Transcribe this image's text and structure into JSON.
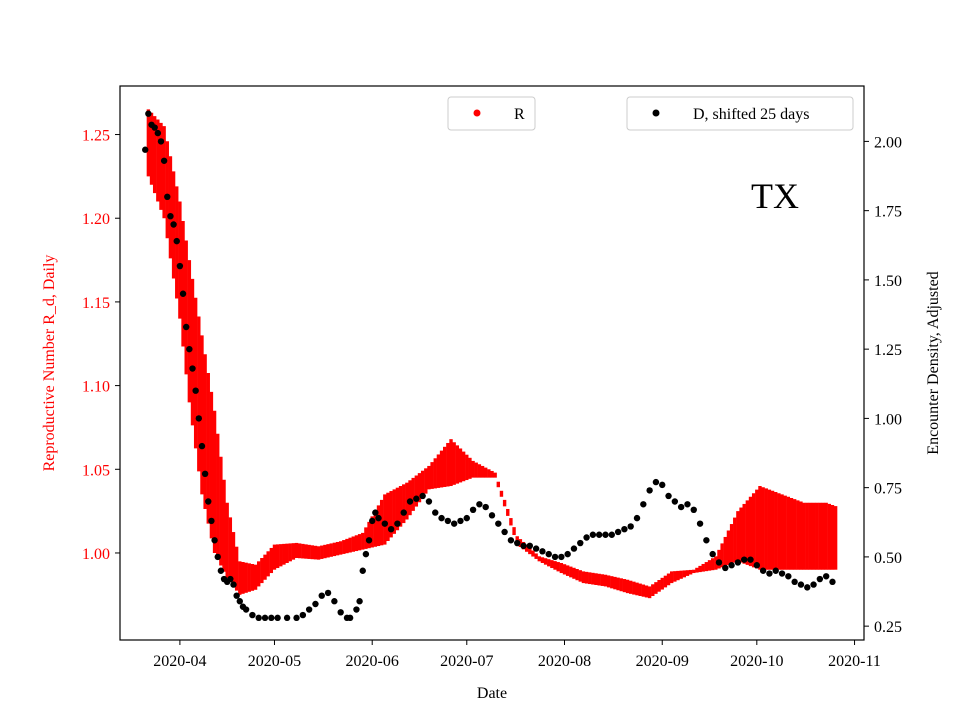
{
  "chart_data": {
    "type": "scatter",
    "title": "",
    "annotation": "TX",
    "xlabel": "Date",
    "ylabel_left": "Reproductive Number R_d, Daily",
    "ylabel_right": "Encounter Density, Adjusted",
    "left_axis_color": "#ff0000",
    "right_axis_color": "#000000",
    "xlim": [
      "2020-03-13",
      "2020-11-04"
    ],
    "ylim_left": [
      0.948,
      1.279
    ],
    "ylim_right": [
      0.2,
      2.2
    ],
    "x_ticks": [
      "2020-04-01",
      "2020-05-01",
      "2020-06-01",
      "2020-07-01",
      "2020-08-01",
      "2020-09-01",
      "2020-10-01",
      "2020-11-01"
    ],
    "x_tick_labels": [
      "2020-04",
      "2020-05",
      "2020-06",
      "2020-07",
      "2020-08",
      "2020-09",
      "2020-10",
      "2020-11"
    ],
    "y_left_ticks": [
      1.0,
      1.05,
      1.1,
      1.15,
      1.2,
      1.25
    ],
    "y_left_tick_labels": [
      "1.00",
      "1.05",
      "1.10",
      "1.15",
      "1.20",
      "1.25"
    ],
    "y_right_ticks": [
      0.25,
      0.5,
      0.75,
      1.0,
      1.25,
      1.5,
      1.75,
      2.0
    ],
    "y_right_tick_labels": [
      "0.25",
      "0.50",
      "0.75",
      "1.00",
      "1.25",
      "1.50",
      "1.75",
      "2.00"
    ],
    "legend_left": {
      "placement": "upper-center",
      "label": "R",
      "color": "#ff0000"
    },
    "legend_right": {
      "placement": "upper-right",
      "label": "D, shifted 25 days",
      "color": "#000000"
    },
    "series": [
      {
        "name": "R",
        "axis": "left",
        "color": "#ff0000",
        "mark": "vertical range",
        "x": [
          "2020-03-22",
          "2020-03-27",
          "2020-04-01",
          "2020-04-04",
          "2020-04-08",
          "2020-04-12",
          "2020-04-16",
          "2020-04-20",
          "2020-04-25",
          "2020-05-01",
          "2020-05-08",
          "2020-05-15",
          "2020-05-22",
          "2020-05-29",
          "2020-06-05",
          "2020-06-12",
          "2020-06-19",
          "2020-06-26",
          "2020-07-03",
          "2020-07-10",
          "2020-07-17",
          "2020-07-24",
          "2020-07-31",
          "2020-08-07",
          "2020-08-14",
          "2020-08-21",
          "2020-08-28",
          "2020-09-04",
          "2020-09-11",
          "2020-09-18",
          "2020-09-25",
          "2020-10-02",
          "2020-10-09",
          "2020-10-16",
          "2020-10-23",
          "2020-10-26"
        ],
        "low": [
          1.225,
          1.2,
          1.14,
          1.09,
          1.035,
          1.0,
          0.985,
          0.975,
          0.978,
          0.99,
          0.997,
          0.996,
          0.999,
          1.002,
          1.005,
          1.02,
          1.038,
          1.04,
          1.045,
          1.045,
          1.005,
          0.995,
          0.988,
          0.982,
          0.98,
          0.976,
          0.973,
          0.982,
          0.988,
          0.99,
          0.995,
          0.99,
          0.99,
          0.99,
          0.99,
          0.99
        ],
        "high": [
          1.265,
          1.255,
          1.21,
          1.175,
          1.13,
          1.085,
          1.03,
          0.995,
          0.993,
          1.005,
          1.006,
          1.004,
          1.007,
          1.012,
          1.035,
          1.042,
          1.052,
          1.068,
          1.055,
          1.048,
          1.01,
          0.998,
          0.994,
          0.989,
          0.987,
          0.984,
          0.98,
          0.989,
          0.99,
          0.998,
          1.025,
          1.04,
          1.035,
          1.03,
          1.03,
          1.028
        ]
      },
      {
        "name": "D, shifted 25 days",
        "axis": "right",
        "color": "#000000",
        "mark": "dot",
        "x": [
          "2020-03-21",
          "2020-03-22",
          "2020-03-23",
          "2020-03-24",
          "2020-03-25",
          "2020-03-26",
          "2020-03-27",
          "2020-03-28",
          "2020-03-29",
          "2020-03-30",
          "2020-03-31",
          "2020-04-01",
          "2020-04-02",
          "2020-04-03",
          "2020-04-04",
          "2020-04-05",
          "2020-04-06",
          "2020-04-07",
          "2020-04-08",
          "2020-04-09",
          "2020-04-10",
          "2020-04-11",
          "2020-04-12",
          "2020-04-13",
          "2020-04-14",
          "2020-04-15",
          "2020-04-16",
          "2020-04-17",
          "2020-04-18",
          "2020-04-19",
          "2020-04-20",
          "2020-04-21",
          "2020-04-22",
          "2020-04-24",
          "2020-04-26",
          "2020-04-28",
          "2020-04-30",
          "2020-05-02",
          "2020-05-05",
          "2020-05-08",
          "2020-05-10",
          "2020-05-12",
          "2020-05-14",
          "2020-05-16",
          "2020-05-18",
          "2020-05-20",
          "2020-05-22",
          "2020-05-24",
          "2020-05-25",
          "2020-05-27",
          "2020-05-28",
          "2020-05-29",
          "2020-05-30",
          "2020-05-31",
          "2020-06-01",
          "2020-06-02",
          "2020-06-03",
          "2020-06-05",
          "2020-06-07",
          "2020-06-09",
          "2020-06-11",
          "2020-06-13",
          "2020-06-15",
          "2020-06-17",
          "2020-06-19",
          "2020-06-21",
          "2020-06-23",
          "2020-06-25",
          "2020-06-27",
          "2020-06-29",
          "2020-07-01",
          "2020-07-03",
          "2020-07-05",
          "2020-07-07",
          "2020-07-09",
          "2020-07-11",
          "2020-07-13",
          "2020-07-15",
          "2020-07-17",
          "2020-07-19",
          "2020-07-21",
          "2020-07-23",
          "2020-07-25",
          "2020-07-27",
          "2020-07-29",
          "2020-07-31",
          "2020-08-02",
          "2020-08-04",
          "2020-08-06",
          "2020-08-08",
          "2020-08-10",
          "2020-08-12",
          "2020-08-14",
          "2020-08-16",
          "2020-08-18",
          "2020-08-20",
          "2020-08-22",
          "2020-08-24",
          "2020-08-26",
          "2020-08-28",
          "2020-08-30",
          "2020-09-01",
          "2020-09-03",
          "2020-09-05",
          "2020-09-07",
          "2020-09-09",
          "2020-09-11",
          "2020-09-13",
          "2020-09-15",
          "2020-09-17",
          "2020-09-19",
          "2020-09-21",
          "2020-09-23",
          "2020-09-25",
          "2020-09-27",
          "2020-09-29",
          "2020-10-01",
          "2020-10-03",
          "2020-10-05",
          "2020-10-07",
          "2020-10-09",
          "2020-10-11",
          "2020-10-13",
          "2020-10-15",
          "2020-10-17",
          "2020-10-19",
          "2020-10-21",
          "2020-10-23",
          "2020-10-25"
        ],
        "y": [
          1.97,
          2.1,
          2.06,
          2.05,
          2.03,
          2.0,
          1.93,
          1.8,
          1.73,
          1.7,
          1.64,
          1.55,
          1.45,
          1.33,
          1.25,
          1.18,
          1.1,
          1.0,
          0.9,
          0.8,
          0.7,
          0.63,
          0.56,
          0.5,
          0.45,
          0.42,
          0.41,
          0.42,
          0.4,
          0.36,
          0.34,
          0.32,
          0.31,
          0.29,
          0.28,
          0.28,
          0.28,
          0.28,
          0.28,
          0.28,
          0.29,
          0.31,
          0.33,
          0.36,
          0.37,
          0.34,
          0.3,
          0.28,
          0.28,
          0.31,
          0.34,
          0.45,
          0.51,
          0.56,
          0.63,
          0.66,
          0.64,
          0.62,
          0.6,
          0.62,
          0.66,
          0.7,
          0.71,
          0.72,
          0.7,
          0.66,
          0.64,
          0.63,
          0.62,
          0.63,
          0.64,
          0.67,
          0.69,
          0.68,
          0.65,
          0.62,
          0.59,
          0.56,
          0.55,
          0.54,
          0.54,
          0.53,
          0.52,
          0.51,
          0.5,
          0.5,
          0.51,
          0.53,
          0.55,
          0.57,
          0.58,
          0.58,
          0.58,
          0.58,
          0.59,
          0.6,
          0.61,
          0.64,
          0.69,
          0.74,
          0.77,
          0.76,
          0.72,
          0.7,
          0.68,
          0.69,
          0.67,
          0.62,
          0.56,
          0.51,
          0.48,
          0.46,
          0.47,
          0.48,
          0.49,
          0.49,
          0.47,
          0.45,
          0.44,
          0.45,
          0.44,
          0.43,
          0.41,
          0.4,
          0.39,
          0.4,
          0.42,
          0.43,
          0.41
        ]
      }
    ]
  }
}
